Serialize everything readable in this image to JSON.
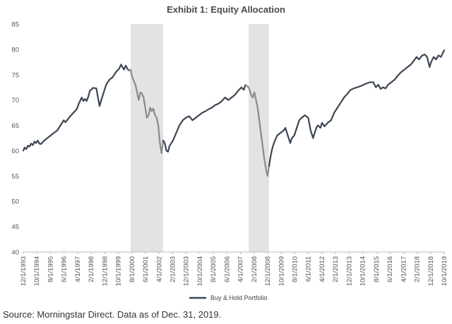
{
  "chart_data": {
    "type": "line",
    "title": "Exhibit 1: Equity Allocation",
    "ylim": [
      40,
      85
    ],
    "yticks": [
      40,
      45,
      50,
      55,
      60,
      65,
      70,
      75,
      80,
      85
    ],
    "xlim": [
      1993.917,
      2019.75
    ],
    "xticks": [
      {
        "label": "12/1/1993",
        "x": 1993.917
      },
      {
        "label": "10/1/1994",
        "x": 1994.75
      },
      {
        "label": "8/1/1995",
        "x": 1995.583
      },
      {
        "label": "6/1/1996",
        "x": 1996.417
      },
      {
        "label": "4/1/1997",
        "x": 1997.25
      },
      {
        "label": "2/1/1998",
        "x": 1998.083
      },
      {
        "label": "12/1/1998",
        "x": 1998.917
      },
      {
        "label": "10/1/1999",
        "x": 1999.75
      },
      {
        "label": "8/1/2000",
        "x": 2000.583
      },
      {
        "label": "6/1/2001",
        "x": 2001.417
      },
      {
        "label": "4/1/2002",
        "x": 2002.25
      },
      {
        "label": "2/1/2003",
        "x": 2003.083
      },
      {
        "label": "12/1/2003",
        "x": 2003.917
      },
      {
        "label": "10/1/2004",
        "x": 2004.75
      },
      {
        "label": "8/1/2005",
        "x": 2005.583
      },
      {
        "label": "6/1/2006",
        "x": 2006.417
      },
      {
        "label": "4/1/2007",
        "x": 2007.25
      },
      {
        "label": "2/1/2008",
        "x": 2008.083
      },
      {
        "label": "12/1/2008",
        "x": 2008.917
      },
      {
        "label": "10/1/2009",
        "x": 2009.75
      },
      {
        "label": "8/1/2010",
        "x": 2010.583
      },
      {
        "label": "6/1/2011",
        "x": 2011.417
      },
      {
        "label": "4/1/2012",
        "x": 2012.25
      },
      {
        "label": "2/1/2013",
        "x": 2013.083
      },
      {
        "label": "12/1/2013",
        "x": 2013.917
      },
      {
        "label": "10/1/2014",
        "x": 2014.75
      },
      {
        "label": "8/1/2015",
        "x": 2015.583
      },
      {
        "label": "6/1/2016",
        "x": 2016.417
      },
      {
        "label": "4/1/2017",
        "x": 2017.25
      },
      {
        "label": "2/1/2018",
        "x": 2018.083
      },
      {
        "label": "12/1/2018",
        "x": 2018.917
      },
      {
        "label": "10/1/2019",
        "x": 2019.75
      }
    ],
    "shaded_regions": [
      {
        "start": 2000.5,
        "end": 2002.5
      },
      {
        "start": 2007.75,
        "end": 2009.0
      }
    ],
    "grid": false,
    "legend": {
      "position": "bottom-center"
    },
    "series": [
      {
        "name": "Buy & Hold Portfolio",
        "color": "#3c4654",
        "shaded_color": "#8a8a8a",
        "points": [
          [
            1993.917,
            60.0
          ],
          [
            1994.0,
            60.6
          ],
          [
            1994.1,
            60.3
          ],
          [
            1994.2,
            61.0
          ],
          [
            1994.3,
            60.8
          ],
          [
            1994.4,
            61.4
          ],
          [
            1994.5,
            61.1
          ],
          [
            1994.6,
            61.8
          ],
          [
            1994.7,
            61.5
          ],
          [
            1994.8,
            62.0
          ],
          [
            1994.9,
            61.4
          ],
          [
            1995.0,
            61.3
          ],
          [
            1995.2,
            62.0
          ],
          [
            1995.4,
            62.5
          ],
          [
            1995.6,
            63.0
          ],
          [
            1995.8,
            63.5
          ],
          [
            1996.0,
            64.0
          ],
          [
            1996.2,
            65.0
          ],
          [
            1996.4,
            66.0
          ],
          [
            1996.5,
            65.6
          ],
          [
            1996.6,
            66.0
          ],
          [
            1996.8,
            66.8
          ],
          [
            1997.0,
            67.5
          ],
          [
            1997.2,
            68.2
          ],
          [
            1997.35,
            69.5
          ],
          [
            1997.5,
            70.5
          ],
          [
            1997.6,
            69.8
          ],
          [
            1997.7,
            70.2
          ],
          [
            1997.8,
            69.8
          ],
          [
            1997.9,
            70.6
          ],
          [
            1998.0,
            71.8
          ],
          [
            1998.2,
            72.4
          ],
          [
            1998.4,
            72.3
          ],
          [
            1998.5,
            70.5
          ],
          [
            1998.6,
            68.8
          ],
          [
            1998.75,
            70.5
          ],
          [
            1998.9,
            72.0
          ],
          [
            1999.0,
            73.0
          ],
          [
            1999.2,
            74.0
          ],
          [
            1999.4,
            74.5
          ],
          [
            1999.6,
            75.5
          ],
          [
            1999.8,
            76.2
          ],
          [
            1999.92,
            77.0
          ],
          [
            2000.0,
            76.5
          ],
          [
            2000.1,
            76.0
          ],
          [
            2000.2,
            76.8
          ],
          [
            2000.3,
            76.2
          ],
          [
            2000.4,
            75.8
          ],
          [
            2000.5,
            76.0
          ],
          [
            2000.6,
            74.5
          ],
          [
            2000.7,
            73.8
          ],
          [
            2000.8,
            73.0
          ],
          [
            2000.9,
            71.5
          ],
          [
            2001.0,
            70.0
          ],
          [
            2001.1,
            71.5
          ],
          [
            2001.2,
            71.3
          ],
          [
            2001.3,
            70.5
          ],
          [
            2001.4,
            68.5
          ],
          [
            2001.5,
            66.5
          ],
          [
            2001.6,
            67.0
          ],
          [
            2001.7,
            68.5
          ],
          [
            2001.8,
            67.8
          ],
          [
            2001.9,
            68.3
          ],
          [
            2002.0,
            67.0
          ],
          [
            2002.1,
            66.5
          ],
          [
            2002.2,
            65.0
          ],
          [
            2002.3,
            61.5
          ],
          [
            2002.4,
            59.5
          ],
          [
            2002.5,
            62.0
          ],
          [
            2002.6,
            61.5
          ],
          [
            2002.7,
            60.0
          ],
          [
            2002.8,
            59.8
          ],
          [
            2002.9,
            61.0
          ],
          [
            2003.0,
            61.5
          ],
          [
            2003.1,
            62.0
          ],
          [
            2003.3,
            63.5
          ],
          [
            2003.5,
            65.0
          ],
          [
            2003.7,
            66.0
          ],
          [
            2003.9,
            66.5
          ],
          [
            2004.1,
            66.8
          ],
          [
            2004.3,
            66.0
          ],
          [
            2004.5,
            66.5
          ],
          [
            2004.7,
            67.0
          ],
          [
            2004.9,
            67.5
          ],
          [
            2005.1,
            67.8
          ],
          [
            2005.3,
            68.2
          ],
          [
            2005.5,
            68.5
          ],
          [
            2005.7,
            69.0
          ],
          [
            2005.9,
            69.3
          ],
          [
            2006.1,
            69.8
          ],
          [
            2006.3,
            70.5
          ],
          [
            2006.5,
            70.0
          ],
          [
            2006.7,
            70.5
          ],
          [
            2006.9,
            71.0
          ],
          [
            2007.1,
            71.8
          ],
          [
            2007.3,
            72.5
          ],
          [
            2007.45,
            72.0
          ],
          [
            2007.55,
            73.0
          ],
          [
            2007.75,
            72.5
          ],
          [
            2007.9,
            71.0
          ],
          [
            2008.0,
            70.5
          ],
          [
            2008.1,
            71.5
          ],
          [
            2008.2,
            70.0
          ],
          [
            2008.3,
            68.5
          ],
          [
            2008.4,
            66.0
          ],
          [
            2008.5,
            63.5
          ],
          [
            2008.6,
            61.0
          ],
          [
            2008.7,
            58.5
          ],
          [
            2008.8,
            56.5
          ],
          [
            2008.9,
            55.0
          ],
          [
            2009.0,
            57.0
          ],
          [
            2009.1,
            59.0
          ],
          [
            2009.2,
            60.5
          ],
          [
            2009.3,
            61.5
          ],
          [
            2009.4,
            62.3
          ],
          [
            2009.5,
            63.0
          ],
          [
            2009.7,
            63.5
          ],
          [
            2009.9,
            64.0
          ],
          [
            2010.0,
            64.5
          ],
          [
            2010.15,
            63.0
          ],
          [
            2010.3,
            61.5
          ],
          [
            2010.4,
            62.5
          ],
          [
            2010.55,
            63.0
          ],
          [
            2010.7,
            64.5
          ],
          [
            2010.85,
            66.0
          ],
          [
            2011.0,
            66.5
          ],
          [
            2011.2,
            67.0
          ],
          [
            2011.4,
            66.5
          ],
          [
            2011.55,
            64.0
          ],
          [
            2011.7,
            62.5
          ],
          [
            2011.8,
            63.5
          ],
          [
            2011.9,
            64.5
          ],
          [
            2012.0,
            65.0
          ],
          [
            2012.15,
            64.5
          ],
          [
            2012.25,
            65.5
          ],
          [
            2012.4,
            64.8
          ],
          [
            2012.6,
            65.5
          ],
          [
            2012.8,
            66.0
          ],
          [
            2013.0,
            67.5
          ],
          [
            2013.2,
            68.5
          ],
          [
            2013.4,
            69.5
          ],
          [
            2013.6,
            70.5
          ],
          [
            2013.8,
            71.2
          ],
          [
            2014.0,
            72.0
          ],
          [
            2014.2,
            72.3
          ],
          [
            2014.5,
            72.6
          ],
          [
            2014.8,
            73.0
          ],
          [
            2015.0,
            73.3
          ],
          [
            2015.2,
            73.5
          ],
          [
            2015.4,
            73.5
          ],
          [
            2015.55,
            72.5
          ],
          [
            2015.7,
            73.0
          ],
          [
            2015.85,
            72.2
          ],
          [
            2016.0,
            72.5
          ],
          [
            2016.15,
            72.3
          ],
          [
            2016.3,
            73.0
          ],
          [
            2016.5,
            73.5
          ],
          [
            2016.7,
            74.0
          ],
          [
            2016.9,
            74.8
          ],
          [
            2017.1,
            75.5
          ],
          [
            2017.3,
            76.0
          ],
          [
            2017.5,
            76.5
          ],
          [
            2017.7,
            77.0
          ],
          [
            2017.9,
            77.8
          ],
          [
            2018.05,
            78.5
          ],
          [
            2018.2,
            78.0
          ],
          [
            2018.4,
            78.8
          ],
          [
            2018.55,
            79.0
          ],
          [
            2018.7,
            78.5
          ],
          [
            2018.85,
            76.5
          ],
          [
            2018.95,
            77.5
          ],
          [
            2019.1,
            78.5
          ],
          [
            2019.25,
            78.0
          ],
          [
            2019.4,
            78.8
          ],
          [
            2019.55,
            78.5
          ],
          [
            2019.65,
            79.2
          ],
          [
            2019.75,
            79.8
          ]
        ]
      }
    ],
    "source_note": "Source: Morningstar Direct. Data as of Dec. 31, 2019."
  }
}
